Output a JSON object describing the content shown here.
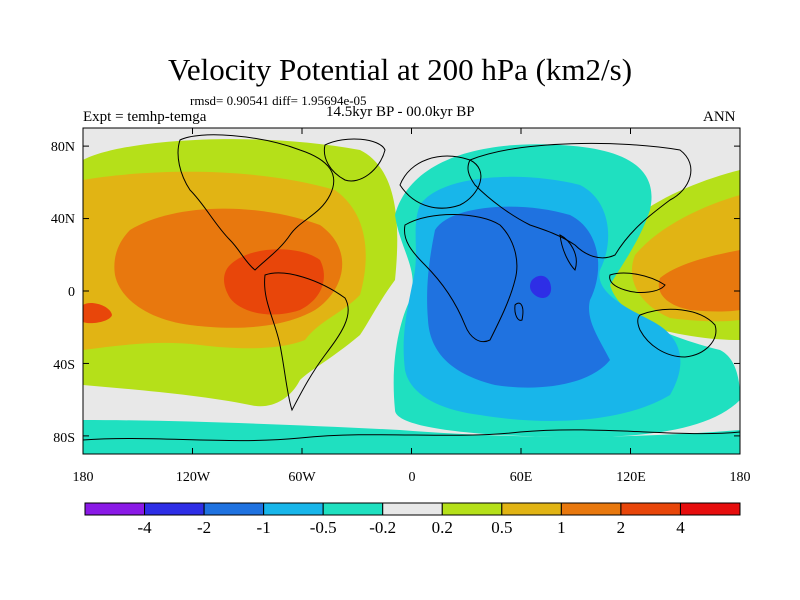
{
  "header": {
    "title": "Velocity Potential at 200 hPa (km2/s)",
    "stats": "rmsd= 0.90541 diff= 1.95694e-05",
    "experiment": "Expt = temhp-temga",
    "period": "14.5kyr BP - 00.0kyr BP",
    "season": "ANN"
  },
  "chart_data": {
    "type": "heatmap",
    "title": "Velocity Potential at 200 hPa (km2/s)",
    "variable": "velocity potential difference at 200 hPa",
    "units": "km2/s",
    "x_axis": {
      "range": [
        -180,
        180
      ],
      "tick_values": [
        -180,
        -120,
        -60,
        0,
        60,
        120,
        180
      ],
      "tick_labels": [
        "180",
        "120W",
        "60W",
        "0",
        "60E",
        "120E",
        "180"
      ]
    },
    "y_axis": {
      "range": [
        -90,
        90
      ],
      "tick_values": [
        80,
        40,
        0,
        -40,
        -80
      ],
      "tick_labels": [
        "80N",
        "40N",
        "0",
        "40S",
        "80S"
      ]
    },
    "color_levels": [
      -4,
      -2,
      -1,
      -0.5,
      -0.2,
      0.2,
      0.5,
      1,
      2,
      4
    ],
    "color_level_labels": [
      "-4",
      "-2",
      "-1",
      "-0.5",
      "-0.2",
      "0.2",
      "0.5",
      "1",
      "2",
      "4"
    ],
    "color_bins": [
      "#8a19e6",
      "#2e2ee6",
      "#1f72e0",
      "#18b6ea",
      "#1fe0c0",
      "#e8e8e8",
      "#b5e019",
      "#e1b414",
      "#e8780e",
      "#e8460a",
      "#e60d0d"
    ],
    "features": [
      {
        "name": "positive center",
        "lon": -70,
        "lat": 5,
        "value": 2.5
      },
      {
        "name": "positive lobe",
        "lon": 140,
        "lat": 5,
        "value": 1.8
      },
      {
        "name": "negative center",
        "lon": 70,
        "lat": -2,
        "value": -2.3
      },
      {
        "name": "negative basin",
        "lon": 60,
        "lat": -10,
        "value": -1.5
      }
    ]
  }
}
